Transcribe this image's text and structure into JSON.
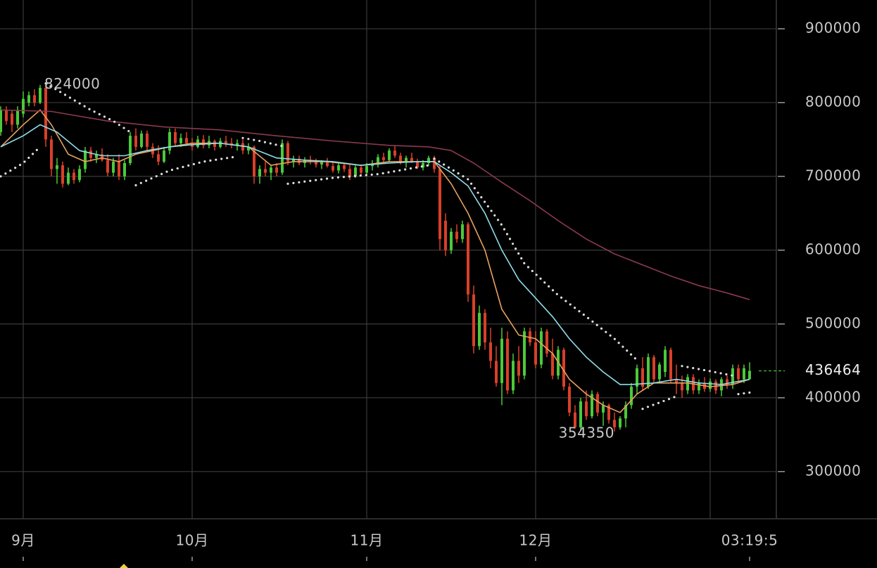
{
  "chart_data": {
    "type": "candlestick",
    "x": [
      -4,
      -3,
      -2,
      -1,
      0,
      1,
      2,
      3,
      4,
      5,
      6,
      7,
      8,
      9,
      10,
      11,
      12,
      13,
      14,
      15,
      16,
      17,
      18,
      19,
      20,
      21,
      22,
      23,
      24,
      25,
      26,
      27,
      28,
      29,
      30,
      31,
      32,
      33,
      34,
      35,
      36,
      37,
      38,
      39,
      40,
      41,
      42,
      43,
      44,
      45,
      46,
      47,
      48,
      49,
      50,
      51,
      52,
      53,
      54,
      55,
      56,
      57,
      58,
      59,
      60,
      61,
      62,
      63,
      64,
      65,
      66,
      67,
      68,
      69,
      70,
      71,
      72,
      73,
      74,
      75,
      76,
      77,
      78,
      79,
      80,
      81,
      82,
      83,
      84,
      85,
      86,
      87,
      88,
      89,
      90,
      91,
      92,
      93,
      94,
      95,
      96,
      97,
      98,
      99,
      100,
      101,
      102,
      103,
      104,
      105,
      106,
      107,
      108,
      109,
      110,
      111,
      112,
      113,
      114,
      115,
      116,
      117,
      118,
      119,
      120,
      121,
      122,
      123,
      124,
      125,
      126,
      127,
      128,
      129
    ],
    "open": [
      760000,
      790000,
      785000,
      770000,
      785000,
      800000,
      810000,
      800000,
      820000,
      750000,
      710000,
      715000,
      690000,
      705000,
      695000,
      710000,
      735000,
      725000,
      730000,
      722000,
      705000,
      720000,
      700000,
      718000,
      755000,
      740000,
      758000,
      740000,
      730000,
      720000,
      735000,
      760000,
      745000,
      752000,
      745000,
      740000,
      750000,
      742000,
      748000,
      740000,
      748000,
      745000,
      742000,
      745000,
      735000,
      740000,
      700000,
      710000,
      705000,
      712000,
      705000,
      745000,
      720000,
      724000,
      718000,
      722000,
      720000,
      716000,
      720000,
      714000,
      708000,
      715000,
      710000,
      700000,
      712000,
      705000,
      714000,
      716000,
      726000,
      722000,
      735000,
      728000,
      720000,
      725000,
      720000,
      712000,
      718000,
      725000,
      710000,
      640000,
      600000,
      625000,
      615000,
      635000,
      540000,
      470000,
      515000,
      475000,
      450000,
      420000,
      480000,
      410000,
      450000,
      430000,
      490000,
      475000,
      445000,
      490000,
      460000,
      430000,
      465000,
      415000,
      380000,
      360000,
      395000,
      375000,
      405000,
      380000,
      390000,
      370000,
      360000,
      372000,
      390000,
      415000,
      440000,
      415000,
      455000,
      425000,
      435000,
      465000,
      425000,
      420000,
      410000,
      428000,
      410000,
      420000,
      412000,
      422000,
      410000,
      425000,
      418000,
      440000,
      425000,
      425000
    ],
    "high": [
      795000,
      795000,
      790000,
      795000,
      815000,
      815000,
      818000,
      824000,
      824000,
      755000,
      725000,
      720000,
      712000,
      710000,
      715000,
      740000,
      740000,
      735000,
      738000,
      730000,
      725000,
      730000,
      722000,
      760000,
      765000,
      762000,
      762000,
      745000,
      742000,
      740000,
      765000,
      765000,
      758000,
      760000,
      752000,
      755000,
      756000,
      755000,
      750000,
      752000,
      755000,
      752000,
      750000,
      750000,
      745000,
      742000,
      715000,
      720000,
      715000,
      718000,
      750000,
      748000,
      728000,
      728000,
      726000,
      728000,
      724000,
      722000,
      725000,
      720000,
      718000,
      718000,
      716000,
      715000,
      716000,
      718000,
      722000,
      730000,
      732000,
      738000,
      742000,
      732000,
      728000,
      732000,
      724000,
      722000,
      728000,
      728000,
      715000,
      650000,
      630000,
      635000,
      640000,
      638000,
      552000,
      525000,
      520000,
      495000,
      470000,
      495000,
      490000,
      460000,
      470000,
      495000,
      495000,
      490000,
      495000,
      493000,
      480000,
      470000,
      468000,
      420000,
      390000,
      400000,
      410000,
      410000,
      408000,
      395000,
      392000,
      380000,
      375000,
      395000,
      420000,
      445000,
      455000,
      460000,
      458000,
      448000,
      470000,
      468000,
      445000,
      430000,
      432000,
      432000,
      425000,
      428000,
      426000,
      425000,
      428000,
      430000,
      445000,
      445000,
      445000,
      448000
    ],
    "low": [
      755000,
      770000,
      760000,
      765000,
      780000,
      795000,
      795000,
      798000,
      740000,
      700000,
      690000,
      685000,
      688000,
      690000,
      692000,
      705000,
      720000,
      718000,
      720000,
      700000,
      700000,
      695000,
      695000,
      715000,
      735000,
      738000,
      735000,
      725000,
      715000,
      718000,
      730000,
      740000,
      740000,
      742000,
      735000,
      738000,
      738000,
      738000,
      735000,
      738000,
      740000,
      738000,
      735000,
      730000,
      730000,
      690000,
      690000,
      700000,
      695000,
      700000,
      702000,
      715000,
      712000,
      715000,
      712000,
      716000,
      712000,
      710000,
      712000,
      705000,
      704000,
      706000,
      695000,
      698000,
      702000,
      702000,
      708000,
      712000,
      718000,
      720000,
      725000,
      716000,
      712000,
      718000,
      710000,
      708000,
      714000,
      705000,
      600000,
      592000,
      595000,
      610000,
      610000,
      530000,
      460000,
      465000,
      465000,
      440000,
      415000,
      390000,
      405000,
      405000,
      420000,
      425000,
      470000,
      440000,
      440000,
      455000,
      425000,
      425000,
      410000,
      375000,
      358000,
      355000,
      370000,
      372000,
      375000,
      362000,
      365000,
      354350,
      357000,
      360000,
      385000,
      405000,
      410000,
      412000,
      420000,
      420000,
      428000,
      420000,
      405000,
      400000,
      405000,
      405000,
      405000,
      408000,
      408000,
      405000,
      402000,
      412000,
      412000,
      420000,
      420000,
      430000
    ],
    "close": [
      790000,
      775000,
      770000,
      790000,
      805000,
      810000,
      800000,
      820000,
      750000,
      710000,
      715000,
      690000,
      705000,
      695000,
      710000,
      735000,
      725000,
      730000,
      722000,
      705000,
      720000,
      700000,
      718000,
      755000,
      740000,
      758000,
      740000,
      730000,
      720000,
      735000,
      760000,
      745000,
      752000,
      745000,
      740000,
      750000,
      742000,
      748000,
      740000,
      748000,
      745000,
      742000,
      745000,
      735000,
      740000,
      700000,
      710000,
      705000,
      712000,
      705000,
      745000,
      720000,
      724000,
      718000,
      722000,
      720000,
      716000,
      720000,
      714000,
      708000,
      715000,
      710000,
      700000,
      712000,
      705000,
      714000,
      716000,
      726000,
      722000,
      735000,
      728000,
      720000,
      725000,
      720000,
      712000,
      718000,
      725000,
      710000,
      615000,
      600000,
      625000,
      615000,
      635000,
      540000,
      470000,
      515000,
      475000,
      450000,
      420000,
      480000,
      410000,
      450000,
      430000,
      490000,
      475000,
      445000,
      490000,
      460000,
      430000,
      465000,
      415000,
      380000,
      360000,
      395000,
      375000,
      405000,
      380000,
      390000,
      370000,
      360000,
      372000,
      390000,
      415000,
      440000,
      415000,
      455000,
      425000,
      445000,
      465000,
      425000,
      420000,
      410000,
      428000,
      410000,
      420000,
      412000,
      422000,
      410000,
      425000,
      418000,
      440000,
      425000,
      440000,
      436464
    ],
    "up_color": "#4cc93a",
    "down_color": "#d8402a",
    "lines": [
      {
        "color": "#e8a25f",
        "style": "solid",
        "x": [
          -4,
          0,
          3,
          5,
          8,
          11,
          14,
          17,
          20,
          23,
          26,
          30,
          35,
          40,
          44,
          48,
          54,
          60,
          65,
          70,
          73,
          76,
          79,
          82,
          85,
          88,
          91,
          94,
          97,
          100,
          103,
          106,
          109,
          112,
          115,
          118,
          122,
          126,
          129
        ],
        "values": [
          740000,
          770000,
          790000,
          770000,
          730000,
          720000,
          725000,
          720000,
          730000,
          735000,
          740000,
          745000,
          745000,
          740000,
          715000,
          720000,
          720000,
          715000,
          720000,
          720000,
          720000,
          690000,
          650000,
          600000,
          520000,
          485000,
          480000,
          460000,
          425000,
          405000,
          390000,
          380000,
          405000,
          420000,
          420000,
          420000,
          415000,
          418000,
          425000
        ]
      },
      {
        "color": "#8fdde8",
        "style": "solid",
        "x": [
          -4,
          0,
          3,
          6,
          10,
          14,
          18,
          22,
          26,
          30,
          35,
          40,
          45,
          50,
          55,
          60,
          65,
          70,
          73,
          76,
          79,
          82,
          85,
          88,
          91,
          94,
          97,
          100,
          103,
          106,
          108,
          112,
          116,
          120,
          124,
          129
        ],
        "values": [
          740000,
          755000,
          770000,
          760000,
          735000,
          728000,
          728000,
          735000,
          740000,
          743000,
          745000,
          740000,
          725000,
          722000,
          720000,
          715000,
          718000,
          720000,
          720000,
          705000,
          687000,
          650000,
          600000,
          560000,
          535000,
          510000,
          480000,
          455000,
          435000,
          418000,
          418000,
          420000,
          425000,
          420000,
          418000,
          425000
        ]
      },
      {
        "color": "#8a3a4e",
        "style": "solid",
        "x": [
          -4,
          5,
          15,
          25,
          35,
          45,
          55,
          65,
          72,
          76,
          80,
          85,
          90,
          95,
          100,
          105,
          110,
          115,
          120,
          125,
          129
        ],
        "values": [
          790000,
          788000,
          775000,
          767000,
          763000,
          755000,
          748000,
          742000,
          740000,
          735000,
          718000,
          692000,
          667000,
          640000,
          615000,
          595000,
          580000,
          565000,
          552000,
          542000,
          533000
        ]
      },
      {
        "color": "#dddddd",
        "style": "dotted",
        "x": [
          -4,
          0,
          3
        ],
        "values": [
          700000,
          718000,
          740000
        ]
      },
      {
        "color": "#dddddd",
        "style": "dotted",
        "x": [
          4,
          8,
          12,
          16,
          19
        ],
        "values": [
          826000,
          808000,
          790000,
          775000,
          760000
        ]
      },
      {
        "color": "#dddddd",
        "style": "dotted",
        "x": [
          20,
          26,
          32,
          38
        ],
        "values": [
          688000,
          708000,
          720000,
          727000
        ]
      },
      {
        "color": "#dddddd",
        "style": "dotted",
        "x": [
          39,
          42,
          46
        ],
        "values": [
          752000,
          748000,
          741000
        ]
      },
      {
        "color": "#dddddd",
        "style": "dotted",
        "x": [
          47,
          55,
          63,
          72
        ],
        "values": [
          690000,
          698000,
          703000,
          715000
        ]
      },
      {
        "color": "#dddddd",
        "style": "dotted",
        "x": [
          73,
          79,
          85,
          89,
          95,
          100,
          105,
          109
        ],
        "values": [
          724000,
          696000,
          634000,
          582000,
          539000,
          510000,
          480000,
          451000
        ]
      },
      {
        "color": "#dddddd",
        "style": "dotted",
        "x": [
          110,
          116
        ],
        "values": [
          385000,
          402000
        ]
      },
      {
        "color": "#dddddd",
        "style": "dotted",
        "x": [
          117,
          122,
          126
        ],
        "values": [
          443000,
          436000,
          430000
        ]
      },
      {
        "color": "#dddddd",
        "style": "dotted",
        "x": [
          127,
          129
        ],
        "values": [
          405000,
          407000
        ]
      }
    ],
    "annotations": [
      {
        "x": 4,
        "value": 824000
      },
      {
        "x": 105,
        "value": 354350
      }
    ],
    "last_price": 436464,
    "ylim": [
      236000,
      939000
    ],
    "yticks": [
      300000,
      400000,
      500000,
      600000,
      700000,
      800000,
      900000
    ],
    "xlim": [
      -4.125,
      133.75
    ],
    "xticks": [
      {
        "value": 0,
        "label": "9月"
      },
      {
        "value": 30,
        "label": "10月"
      },
      {
        "value": 61,
        "label": "11月"
      },
      {
        "value": 91,
        "label": "12月"
      },
      {
        "value": 122,
        "label": null
      }
    ],
    "time_label": {
      "value": 129,
      "label": "03:19:5"
    },
    "grid": true
  }
}
